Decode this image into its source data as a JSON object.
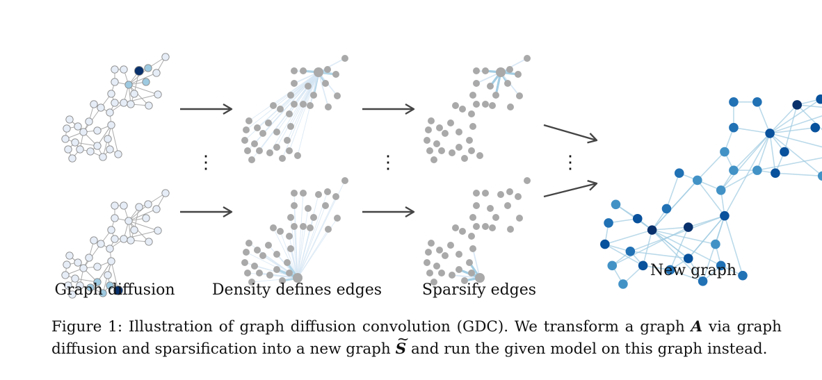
{
  "figure": {
    "stages": [
      {
        "id": "diffusion",
        "label": "Graph diffusion"
      },
      {
        "id": "density",
        "label": "Density defines edges"
      },
      {
        "id": "sparsify",
        "label": "Sparsify edges"
      },
      {
        "id": "newgraph",
        "label": "New graph"
      }
    ],
    "ellipsis": "⋮",
    "colors": {
      "edge_gray": "#aaaaaa",
      "node_light": "#e6edf7",
      "node_stroke": "#8a8a8a",
      "node_gray": "#a9a9a9",
      "edge_blue_light": "#d6e6f4",
      "edge_blue": "#9ecae1",
      "blue_mid": "#4292c6",
      "blue_dark": "#2171b5",
      "blue_darker": "#08519c",
      "navy": "#08306b",
      "arrow": "#444444"
    }
  },
  "caption": {
    "prefix": "Figure 1: Illustration of graph diffusion convolution (GDC). We transform a graph ",
    "symbol_a": "A",
    "middle": " via graph diffusion and sparsification into a new graph ",
    "symbol_s": "S",
    "tilde": "~",
    "suffix": " and run the given model on this graph instead."
  }
}
